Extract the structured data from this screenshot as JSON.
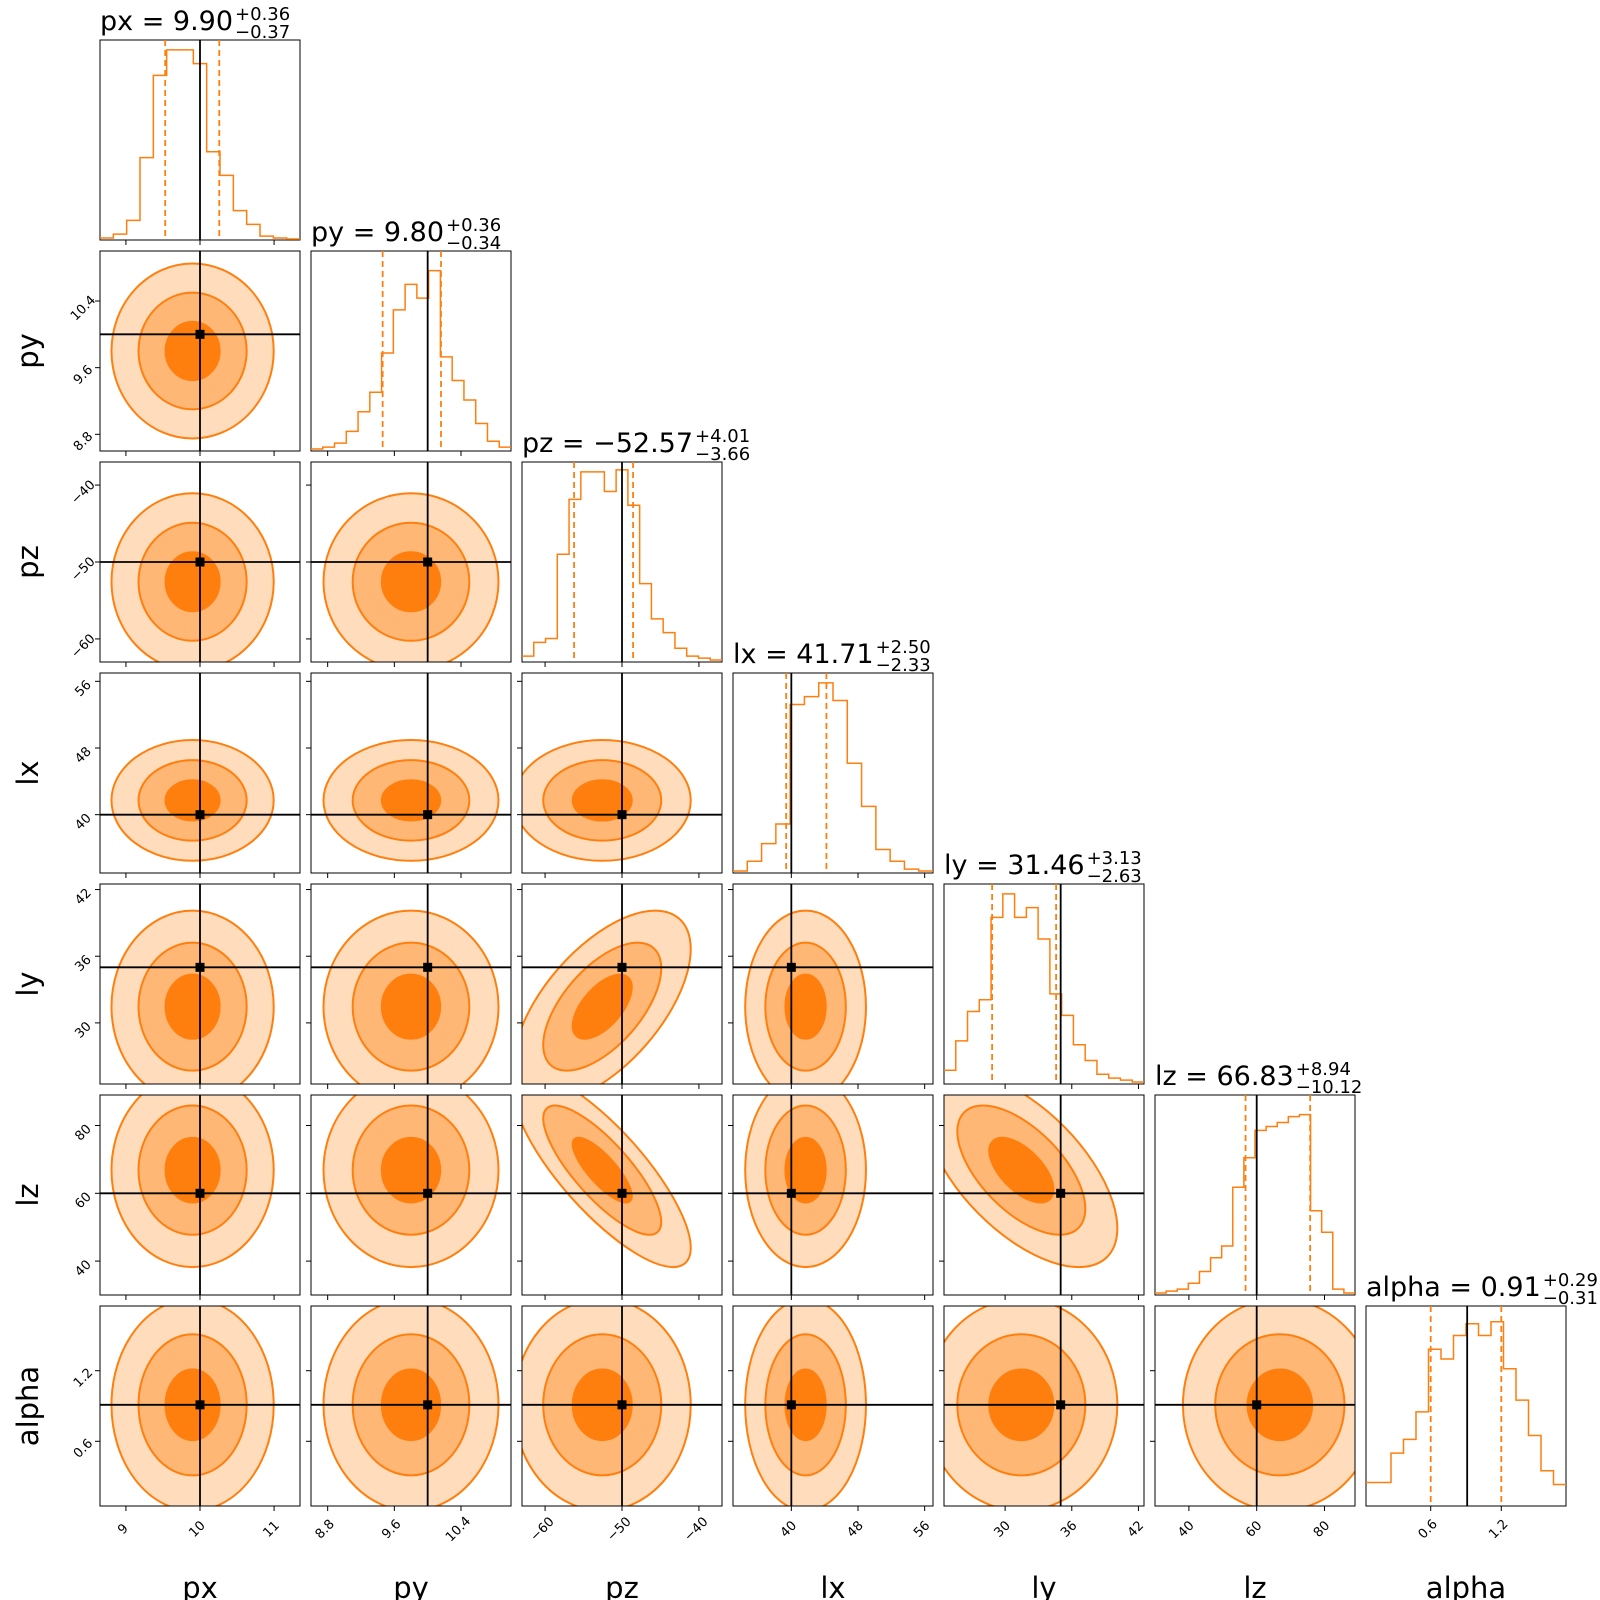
{
  "chart_data": {
    "type": "corner",
    "colors": {
      "main": "#ff7f0e",
      "truth": "#000000",
      "fill_levels": [
        "#ffdcbc",
        "#ffb775",
        "#ff7f0e"
      ]
    },
    "parameters": [
      {
        "name": "px",
        "range": [
          8.65,
          11.35
        ],
        "truth": 10.0,
        "median": 9.9,
        "plus": 0.36,
        "minus": 0.37,
        "ticks": [
          9,
          10,
          11
        ],
        "tick_labels": [
          "9",
          "10",
          "11"
        ],
        "title_main": "px = 9.90",
        "title_plus": "+0.36",
        "title_minus": "−0.37"
      },
      {
        "name": "py",
        "range": [
          8.6,
          11.0
        ],
        "truth": 10.0,
        "median": 9.8,
        "plus": 0.36,
        "minus": 0.34,
        "ticks": [
          8.8,
          9.6,
          10.4
        ],
        "tick_labels": [
          "8.8",
          "9.6",
          "10.4"
        ],
        "title_main": "py = 9.80",
        "title_plus": "+0.36",
        "title_minus": "−0.34"
      },
      {
        "name": "pz",
        "range": [
          -63.0,
          -37.0
        ],
        "truth": -50.0,
        "median": -52.57,
        "plus": 4.01,
        "minus": 3.66,
        "ticks": [
          -60,
          -50,
          -40
        ],
        "tick_labels": [
          "−60",
          "−50",
          "−40"
        ],
        "title_main": "pz = −52.57",
        "title_plus": "+4.01",
        "title_minus": "−3.66"
      },
      {
        "name": "lx",
        "range": [
          33.0,
          57.0
        ],
        "truth": 40.0,
        "median": 41.71,
        "plus": 2.5,
        "minus": 2.33,
        "ticks": [
          40,
          48,
          56
        ],
        "tick_labels": [
          "40",
          "48",
          "56"
        ],
        "title_main": "lx = 41.71",
        "title_plus": "+2.50",
        "title_minus": "−2.33"
      },
      {
        "name": "ly",
        "range": [
          24.5,
          42.5
        ],
        "truth": 35.0,
        "median": 31.46,
        "plus": 3.13,
        "minus": 2.63,
        "ticks": [
          30,
          36,
          42
        ],
        "tick_labels": [
          "30",
          "36",
          "42"
        ],
        "title_main": "ly = 31.46",
        "title_plus": "+3.13",
        "title_minus": "−2.63"
      },
      {
        "name": "lz",
        "range": [
          30.0,
          89.0
        ],
        "truth": 60.0,
        "median": 66.83,
        "plus": 8.94,
        "minus": 10.12,
        "ticks": [
          40,
          60,
          80
        ],
        "tick_labels": [
          "40",
          "60",
          "80"
        ],
        "title_main": "lz = 66.83",
        "title_plus": "+8.94",
        "title_minus": "−10.12"
      },
      {
        "name": "alpha",
        "range": [
          0.05,
          1.75
        ],
        "truth": 0.91,
        "median": 0.91,
        "plus": 0.29,
        "minus": 0.31,
        "ticks": [
          0.6,
          1.2
        ],
        "tick_labels": [
          "0.6",
          "1.2"
        ],
        "title_main": "alpha = 0.91",
        "title_plus": "+0.29",
        "title_minus": "−0.31"
      }
    ],
    "histograms": [
      [
        0.01,
        0.03,
        0.1,
        0.42,
        0.84,
        0.97,
        0.97,
        0.9,
        0.45,
        0.33,
        0.15,
        0.08,
        0.02,
        0.01,
        0.005
      ],
      [
        0.01,
        0.02,
        0.04,
        0.1,
        0.2,
        0.3,
        0.5,
        0.72,
        0.85,
        0.78,
        0.92,
        0.48,
        0.36,
        0.26,
        0.14,
        0.05,
        0.02
      ],
      [
        0.03,
        0.1,
        0.12,
        0.55,
        0.83,
        0.97,
        0.97,
        0.87,
        0.98,
        0.8,
        0.4,
        0.22,
        0.15,
        0.07,
        0.03,
        0.02,
        0.01
      ],
      [
        0.01,
        0.06,
        0.15,
        0.25,
        0.86,
        0.9,
        0.97,
        0.88,
        0.56,
        0.34,
        0.12,
        0.06,
        0.02,
        0.01
      ],
      [
        0.07,
        0.22,
        0.37,
        0.43,
        0.85,
        0.97,
        0.85,
        0.9,
        0.74,
        0.46,
        0.35,
        0.2,
        0.12,
        0.05,
        0.03,
        0.02,
        0.01
      ],
      [
        0.01,
        0.02,
        0.03,
        0.06,
        0.12,
        0.19,
        0.25,
        0.55,
        0.7,
        0.84,
        0.86,
        0.88,
        0.91,
        0.92,
        0.43,
        0.32,
        0.03,
        0.01
      ],
      [
        0.12,
        0.12,
        0.27,
        0.34,
        0.48,
        0.8,
        0.75,
        0.87,
        0.93,
        0.87,
        0.94,
        0.7,
        0.54,
        0.36,
        0.18,
        0.11
      ]
    ],
    "correlations": {
      "pz_ly": 0.6,
      "pz_lz": -0.8,
      "ly_lz": -0.6
    }
  }
}
